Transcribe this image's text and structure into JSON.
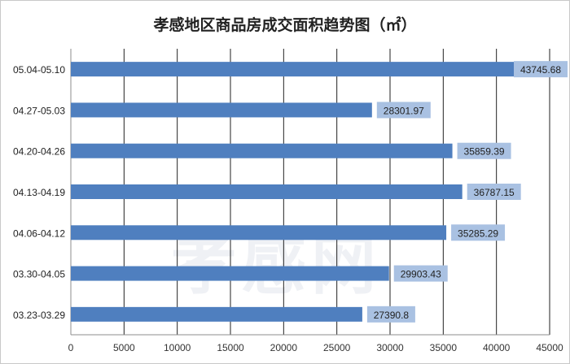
{
  "chart_data": {
    "type": "bar",
    "orientation": "horizontal",
    "title": "孝感地区商品房成交面积趋势图（㎡）",
    "categories": [
      "05.04-05.10",
      "04.27-05.03",
      "04.20-04.26",
      "04.13-04.19",
      "04.06-04.12",
      "03.30-04.05",
      "03.23-03.29"
    ],
    "values": [
      43745.68,
      28301.97,
      35859.39,
      36787.15,
      35285.29,
      29903.43,
      27390.8
    ],
    "data_labels": [
      "43745.68",
      "28301.97",
      "35859.39",
      "36787.15",
      "35285.29",
      "29903.43",
      "27390.8"
    ],
    "xlim": [
      0,
      45000
    ],
    "xticks": [
      0,
      5000,
      10000,
      15000,
      20000,
      25000,
      30000,
      35000,
      40000,
      45000
    ],
    "grid": true,
    "legend": "none",
    "bar_color": "#4f7fbf",
    "label_bg_color": "#a9c1e2"
  },
  "watermark": "孝感网"
}
